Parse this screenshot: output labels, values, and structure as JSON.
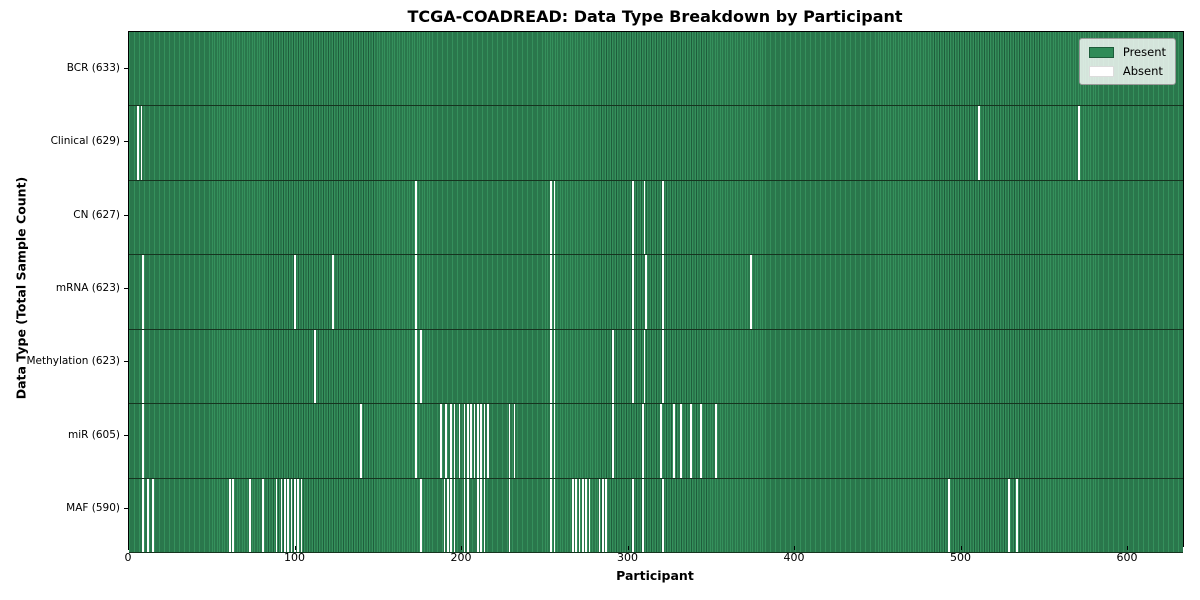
{
  "title": "TCGA-COADREAD: Data Type Breakdown by Participant",
  "xaxis": {
    "label": "Participant",
    "ticks": [
      0,
      100,
      200,
      300,
      400,
      500,
      600
    ]
  },
  "yaxis": {
    "label": "Data Type (Total Sample Count)"
  },
  "legend": {
    "present_label": "Present",
    "absent_label": "Absent"
  },
  "colors": {
    "present": "#2f8b57",
    "present_edge": "#1e5e3c",
    "absent": "#ffffff",
    "row_divider": "#16341f",
    "axis": "#000000"
  },
  "chart_data": {
    "type": "heatmap",
    "title": "TCGA-COADREAD: Data Type Breakdown by Participant",
    "xlabel": "Participant",
    "ylabel": "Data Type (Total Sample Count)",
    "x_range": [
      0,
      633
    ],
    "n_participants": 633,
    "grid": false,
    "legend_position": "upper right",
    "legend_entries": [
      "Present",
      "Absent"
    ],
    "cell_states": {
      "present_color": "#2f8b57",
      "absent_color": "#ffffff"
    },
    "rows": [
      {
        "name": "BCR",
        "label": "BCR (633)",
        "present_count": 633,
        "absent_participants": []
      },
      {
        "name": "Clinical",
        "label": "Clinical (629)",
        "present_count": 629,
        "absent_participants": [
          5,
          7,
          510,
          570
        ]
      },
      {
        "name": "CN",
        "label": "CN (627)",
        "present_count": 627,
        "absent_participants": [
          172,
          253,
          255,
          302,
          309,
          320
        ]
      },
      {
        "name": "mRNA",
        "label": "mRNA (623)",
        "present_count": 623,
        "absent_participants": [
          8,
          99,
          122,
          172,
          253,
          255,
          302,
          310,
          320,
          373
        ]
      },
      {
        "name": "Methylation",
        "label": "Methylation (623)",
        "present_count": 623,
        "absent_participants": [
          8,
          111,
          172,
          175,
          253,
          255,
          290,
          302,
          309,
          320
        ]
      },
      {
        "name": "miR",
        "label": "miR (605)",
        "present_count": 605,
        "absent_participants": [
          8,
          139,
          172,
          187,
          190,
          193,
          195,
          198,
          201,
          203,
          205,
          207,
          209,
          211,
          213,
          215,
          228,
          231,
          253,
          255,
          290,
          308,
          319,
          327,
          331,
          337,
          343,
          352
        ]
      },
      {
        "name": "MAF",
        "label": "MAF (590)",
        "present_count": 590,
        "absent_participants": [
          8,
          11,
          14,
          60,
          62,
          72,
          80,
          88,
          91,
          93,
          95,
          97,
          99,
          101,
          103,
          175,
          189,
          191,
          193,
          195,
          201,
          203,
          209,
          211,
          213,
          228,
          253,
          255,
          266,
          268,
          270,
          272,
          274,
          276,
          282,
          284,
          286,
          302,
          308,
          320,
          492,
          528,
          533
        ]
      }
    ]
  }
}
